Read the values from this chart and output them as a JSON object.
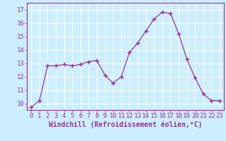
{
  "x": [
    0,
    1,
    2,
    3,
    4,
    5,
    6,
    7,
    8,
    9,
    10,
    11,
    12,
    13,
    14,
    15,
    16,
    17,
    18,
    19,
    20,
    21,
    22,
    23
  ],
  "y": [
    9.7,
    10.2,
    12.8,
    12.8,
    12.9,
    12.8,
    12.9,
    13.1,
    13.2,
    12.1,
    11.5,
    12.0,
    13.8,
    14.5,
    15.4,
    16.3,
    16.8,
    16.7,
    15.2,
    13.3,
    11.9,
    10.7,
    10.2,
    10.2
  ],
  "xlim": [
    -0.5,
    23.5
  ],
  "ylim": [
    9.5,
    17.5
  ],
  "yticks": [
    10,
    11,
    12,
    13,
    14,
    15,
    16,
    17
  ],
  "xticks": [
    0,
    1,
    2,
    3,
    4,
    5,
    6,
    7,
    8,
    9,
    10,
    11,
    12,
    13,
    14,
    15,
    16,
    17,
    18,
    19,
    20,
    21,
    22,
    23
  ],
  "xlabel": "Windchill (Refroidissement éolien,°C)",
  "line_color": "#993399",
  "marker": "+",
  "bg_color": "#cceeff",
  "grid_color": "#ffffff",
  "label_fontsize": 7,
  "tick_fontsize": 6.5
}
